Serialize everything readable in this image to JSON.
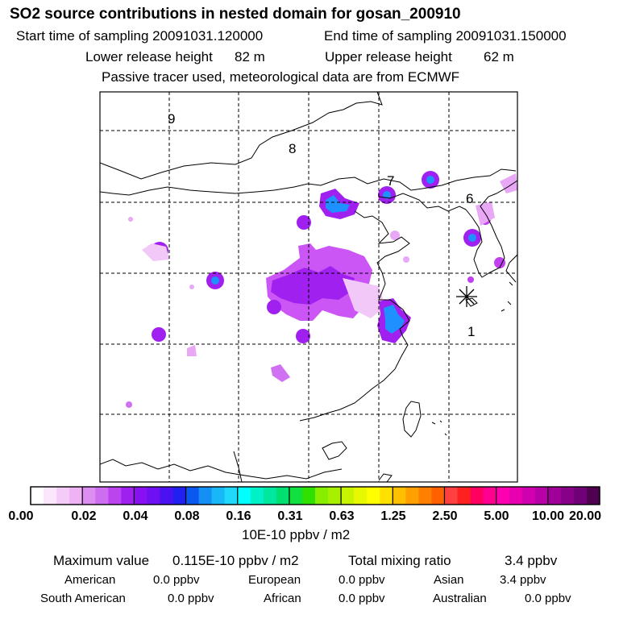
{
  "header": {
    "title": "SO2 source contributions in nested domain for gosan_200910",
    "start_label": "Start time of sampling 20091031.120000",
    "end_label": "End time of sampling 20091031.150000",
    "lower_label": "Lower release height",
    "lower_value": "82 m",
    "upper_label": "Upper release height",
    "upper_value": "62 m",
    "note": "Passive tracer used, meteorological data are from ECMWF"
  },
  "map": {
    "grid_labels": [
      "9",
      "8",
      "7",
      "6",
      "1"
    ],
    "receptor_marker": "asterisk"
  },
  "colorbar": {
    "colors": [
      "#ffffff",
      "#fbe6fb",
      "#f5ccf7",
      "#eeb2f5",
      "#dd8ef2",
      "#cd6ef0",
      "#bb44ee",
      "#a020f0",
      "#8a10f4",
      "#6f10f4",
      "#4a12f0",
      "#2020f0",
      "#0a58f0",
      "#1490f4",
      "#18b8f8",
      "#20d8fc",
      "#00ffff",
      "#00f0c8",
      "#00e8a0",
      "#00e070",
      "#10e040",
      "#30e000",
      "#88ee00",
      "#a8f000",
      "#c8f400",
      "#e8f800",
      "#ffff00",
      "#ffe000",
      "#ffc000",
      "#ffa000",
      "#ff8000",
      "#ff6000",
      "#ff4040",
      "#ff2020",
      "#ff0060",
      "#ff0090",
      "#ff00b0",
      "#e800b0",
      "#d000b0",
      "#b800a8",
      "#a00098",
      "#880088",
      "#700078",
      "#500050"
    ],
    "ticks": [
      "0.00",
      "0.02",
      "0.04",
      "0.08",
      "0.16",
      "0.31",
      "0.63",
      "1.25",
      "2.50",
      "5.00",
      "10.00",
      "20.00"
    ],
    "unit": "10E-10 ppbv / m2"
  },
  "summary": {
    "max_label": "Maximum value",
    "max_value": "0.115E-10 ppbv / m2",
    "total_label": "Total mixing ratio",
    "total_value": "3.4 ppbv",
    "regions": [
      {
        "name": "American",
        "value": "0.0 ppbv"
      },
      {
        "name": "European",
        "value": "0.0 ppbv"
      },
      {
        "name": "Asian",
        "value": "3.4 ppbv"
      },
      {
        "name": "South American",
        "value": "0.0 ppbv"
      },
      {
        "name": "African",
        "value": "0.0 ppbv"
      },
      {
        "name": "Australian",
        "value": "0.0 ppbv"
      }
    ]
  }
}
